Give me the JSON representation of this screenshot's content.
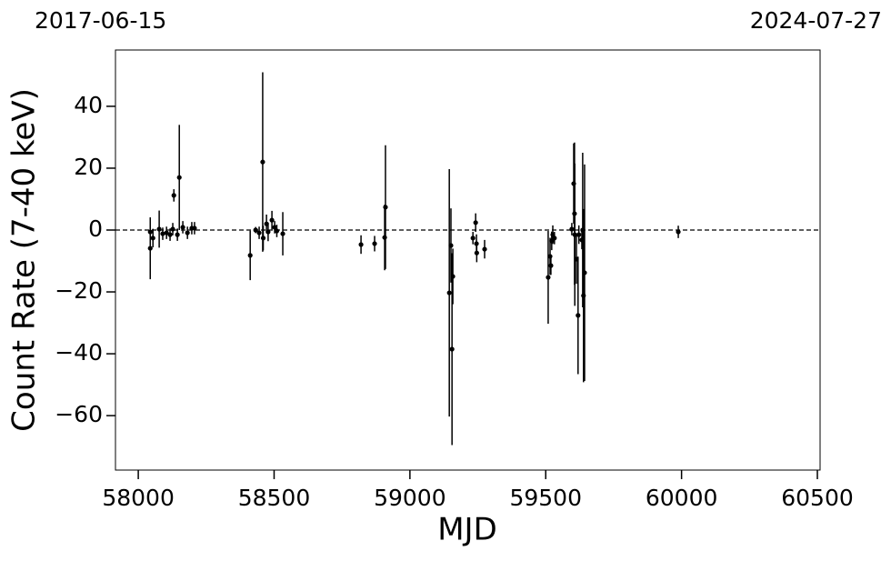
{
  "chart_data": {
    "type": "scatter",
    "date_labels": [
      "2017-06-15",
      "2024-07-27"
    ],
    "xlabel": "MJD",
    "ylabel": "Count Rate (7-40 keV)",
    "color": "#000000",
    "hline": 0,
    "x": [
      58044,
      58044,
      58054,
      58077,
      58090,
      58104,
      58117,
      58131,
      58127,
      58144,
      58151,
      58164,
      58181,
      58197,
      58207,
      58412,
      58432,
      58445,
      58458,
      58460,
      58472,
      58478,
      58492,
      58502,
      58510,
      58532,
      58820,
      58870,
      58907,
      58910,
      59145,
      59151,
      59155,
      59158,
      59232,
      59242,
      59245,
      59246,
      59275,
      59509,
      59516,
      59522,
      59526,
      59519,
      59532,
      59596,
      59603,
      59606,
      59607,
      59613,
      59619,
      59622,
      59633,
      59639,
      59643,
      59636,
      59988
    ],
    "values": [
      -5.9,
      -0.6,
      -2.6,
      0.3,
      -1.2,
      -0.9,
      -1.5,
      11.2,
      0.3,
      -1.5,
      17,
      0.9,
      -0.9,
      0.6,
      0.6,
      -8.2,
      0,
      -0.9,
      22,
      -2.6,
      2,
      -0.6,
      3.2,
      0.9,
      -0.3,
      -1.2,
      -4.7,
      -4.4,
      -2.4,
      7.4,
      -20.3,
      -5,
      -38.5,
      -15,
      -2.6,
      2.4,
      -4.4,
      -7.4,
      -6.2,
      -15.3,
      -8.5,
      -3.5,
      -1.5,
      -11.5,
      -2.6,
      0.3,
      15,
      5.3,
      -1.5,
      -9.4,
      -27.6,
      -1.5,
      -3.2,
      -21.2,
      -13.8,
      0,
      -0.6
    ],
    "errors": [
      10,
      4,
      3,
      6,
      2,
      2,
      2,
      2,
      2,
      2,
      17,
      2,
      2,
      2,
      2,
      8,
      1,
      2,
      29,
      4,
      3,
      3,
      3,
      2,
      2,
      7,
      3,
      2.5,
      10.6,
      20,
      40,
      12,
      31,
      9,
      2,
      3,
      3,
      3,
      3,
      15,
      6,
      3,
      3,
      3,
      2,
      2,
      13,
      23,
      23,
      8,
      19,
      3,
      3,
      28,
      35,
      25,
      2
    ],
    "xlim": [
      57916,
      60510
    ],
    "ylim": [
      -77.6,
      58.2
    ],
    "xticks": [
      58000,
      58500,
      59000,
      59500,
      60000,
      60500
    ],
    "yticks": [
      {
        "value": -60,
        "label": "−60"
      },
      {
        "value": -40,
        "label": "−40"
      },
      {
        "value": -20,
        "label": "−20"
      },
      0,
      20,
      40
    ]
  }
}
